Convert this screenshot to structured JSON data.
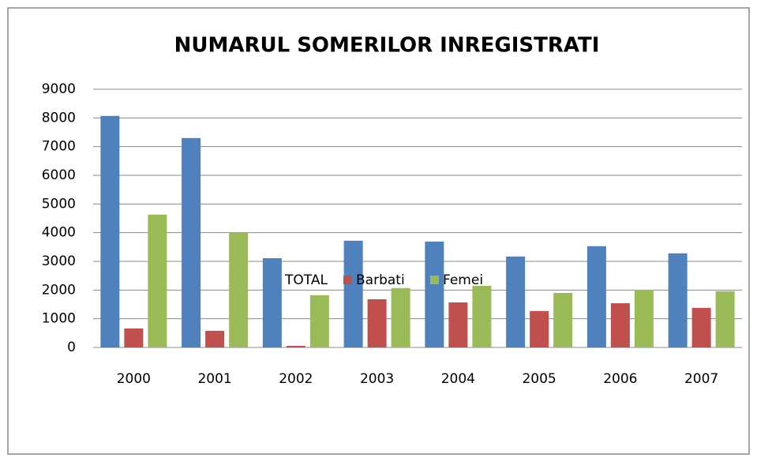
{
  "chart_data": {
    "type": "bar",
    "title": "NUMARUL SOMERILOR INREGISTRATI",
    "categories": [
      "2000",
      "2001",
      "2002",
      "2003",
      "2004",
      "2005",
      "2006",
      "2007"
    ],
    "series": [
      {
        "name": "TOTAL",
        "color": "#4f81bd",
        "values": [
          8070,
          7300,
          3110,
          3720,
          3690,
          3170,
          3530,
          3280
        ]
      },
      {
        "name": "Barbati",
        "color": "#c0504d",
        "values": [
          660,
          580,
          55,
          1680,
          1570,
          1270,
          1540,
          1380
        ]
      },
      {
        "name": "Femei",
        "color": "#9bbb59",
        "values": [
          4630,
          4000,
          1820,
          2070,
          2150,
          1900,
          2010,
          1960
        ]
      }
    ],
    "ylim": [
      0,
      9000
    ],
    "yticks": [
      0,
      1000,
      2000,
      3000,
      4000,
      5000,
      6000,
      7000,
      8000,
      9000
    ],
    "grid": true,
    "legend": "bottom"
  }
}
